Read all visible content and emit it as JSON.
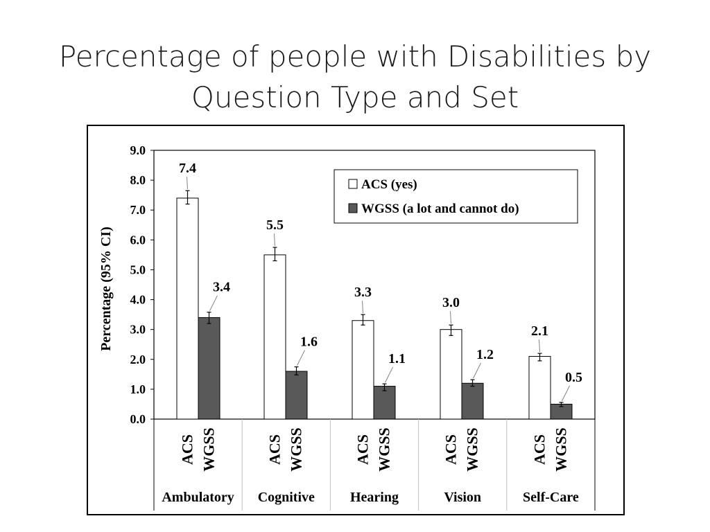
{
  "slide": {
    "title_line1": "Percentage of people with Disabilities by",
    "title_line2": "Question Type and Set"
  },
  "chart_data": {
    "type": "bar",
    "title": "Percentage of people with Disabilities by Question Type and Set",
    "ylabel": "Percentage (95% CI)",
    "xlabel": "",
    "ylim": [
      0,
      9
    ],
    "yticks": [
      "0.0",
      "1.0",
      "2.0",
      "3.0",
      "4.0",
      "5.0",
      "6.0",
      "7.0",
      "8.0",
      "9.0"
    ],
    "grid": false,
    "legend_position": "top-right",
    "categories": [
      "Ambulatory",
      "Cognitive",
      "Hearing",
      "Vision",
      "Self-Care"
    ],
    "series": [
      {
        "name": "ACS (yes)",
        "tick_label": "ACS",
        "color": "#ffffff",
        "values": [
          7.4,
          5.5,
          3.3,
          3.0,
          2.1
        ],
        "value_labels": [
          "7.4",
          "5.5",
          "3.3",
          "3.0",
          "2.1"
        ],
        "ci_low": [
          7.2,
          5.3,
          3.15,
          2.8,
          1.95
        ],
        "ci_high": [
          7.65,
          5.75,
          3.5,
          3.15,
          2.2
        ]
      },
      {
        "name": "WGSS (a lot and cannot do)",
        "tick_label": "WGSS",
        "color": "#595959",
        "values": [
          3.4,
          1.6,
          1.1,
          1.2,
          0.5
        ],
        "value_labels": [
          "3.4",
          "1.6",
          "1.1",
          "1.2",
          "0.5"
        ],
        "ci_low": [
          3.2,
          1.48,
          0.95,
          1.1,
          0.42
        ],
        "ci_high": [
          3.58,
          1.75,
          1.18,
          1.32,
          0.56
        ]
      }
    ]
  }
}
